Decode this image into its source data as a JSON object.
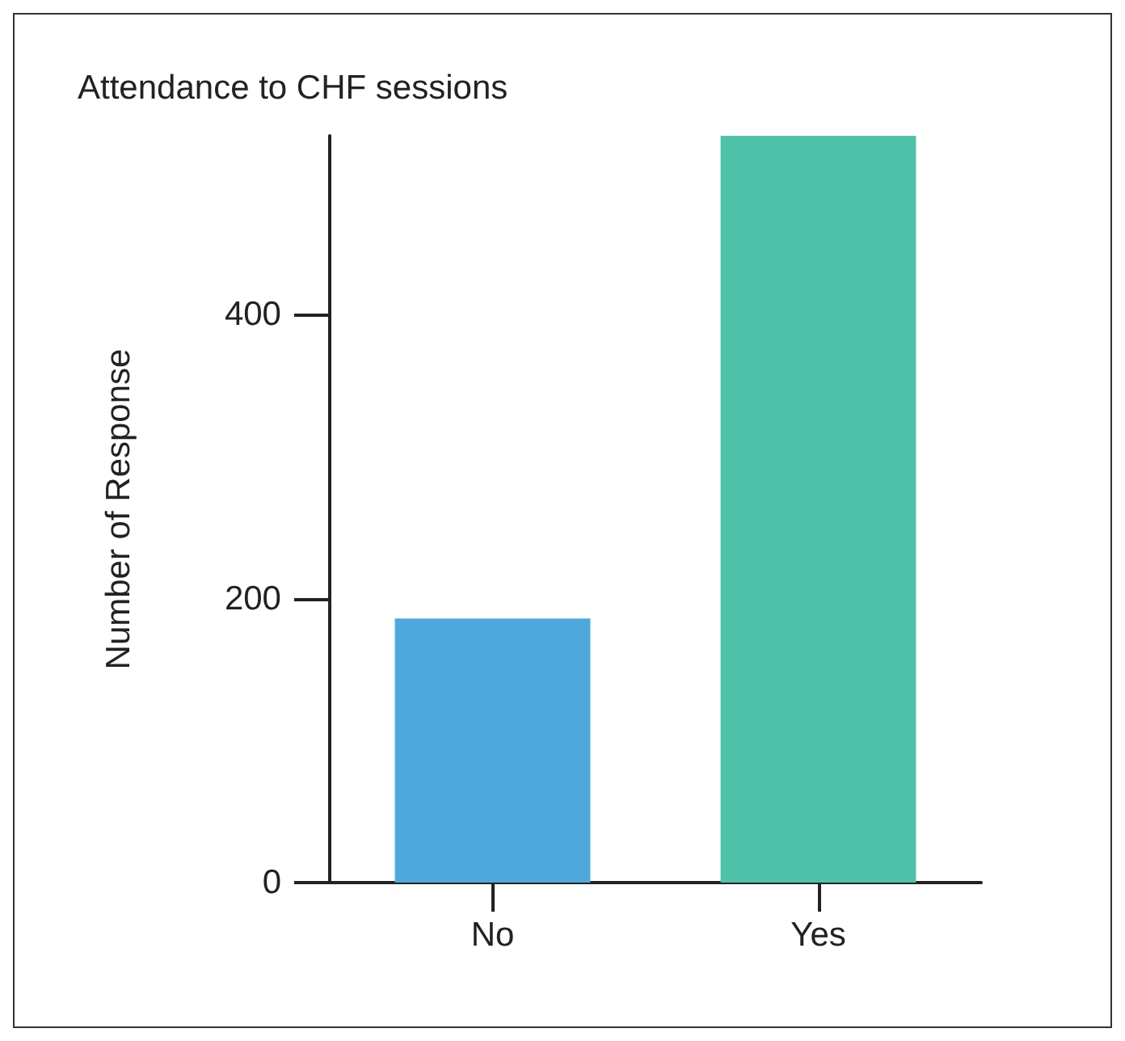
{
  "chart_data": {
    "type": "bar",
    "title": "Attendance to CHF sessions",
    "ylabel": "Number of Response",
    "categories": [
      "No",
      "Yes"
    ],
    "values": [
      186,
      526
    ],
    "colors": [
      "#4fa8dc",
      "#4fc1a9"
    ],
    "ylim": [
      0,
      526
    ],
    "yticks": [
      0,
      200,
      400
    ],
    "grid": false
  }
}
